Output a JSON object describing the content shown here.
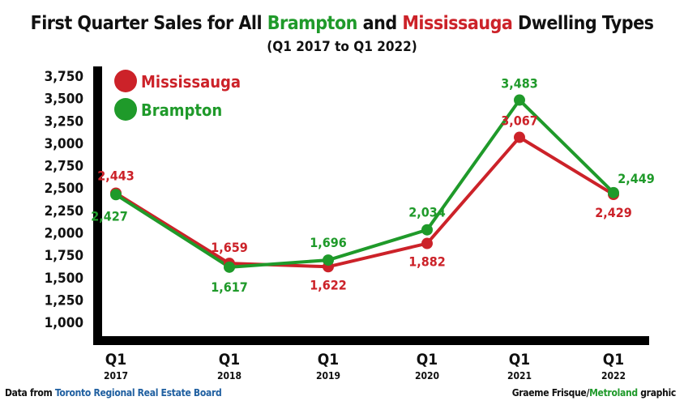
{
  "title": {
    "part1": "First Quarter Sales for All ",
    "brampton": "Brampton",
    "part2": " and ",
    "mississauga": "Mississauga",
    "part3": " Dwelling Types"
  },
  "subtitle": "(Q1 2017 to Q1 2022)",
  "footer": {
    "left_prefix": "Data from ",
    "left_source": "Toronto Regional Real Estate Board",
    "right_author": "Graeme Frisque/",
    "right_org": "Metroland",
    "right_suffix": " graphic"
  },
  "colors": {
    "mississauga": "#cc2229",
    "brampton": "#1f9a2a",
    "source_link": "#1f5fa0",
    "axis": "#000000"
  },
  "chart_data": {
    "type": "line",
    "title": "First Quarter Sales for All Brampton and Mississauga Dwelling Types",
    "subtitle": "(Q1 2017 to Q1 2022)",
    "categories": [
      [
        "Q1",
        "2017"
      ],
      [
        "Q1",
        "2018"
      ],
      [
        "Q1",
        "2019"
      ],
      [
        "Q1",
        "2020"
      ],
      [
        "Q1",
        "2021"
      ],
      [
        "Q1",
        "2022"
      ]
    ],
    "yticks": [
      "3,750",
      "3,500",
      "3,250",
      "3,000",
      "2,750",
      "2,500",
      "2,250",
      "2,000",
      "1,750",
      "1,500",
      "1,250",
      "1,000"
    ],
    "ylim": [
      1000,
      3750
    ],
    "grid": false,
    "legend": "top-left",
    "series": [
      {
        "name": "Mississauga",
        "color": "#cc2229",
        "values": [
          2443,
          1659,
          1622,
          1882,
          3067,
          2429
        ],
        "labels": [
          "2,443",
          "1,659",
          "1,622",
          "1,882",
          "3,067",
          "2,429"
        ]
      },
      {
        "name": "Brampton",
        "color": "#1f9a2a",
        "values": [
          2427,
          1617,
          1696,
          2034,
          3483,
          2449
        ],
        "labels": [
          "2,427",
          "1,617",
          "1,696",
          "2,034",
          "3,483",
          "2,449"
        ]
      }
    ]
  }
}
